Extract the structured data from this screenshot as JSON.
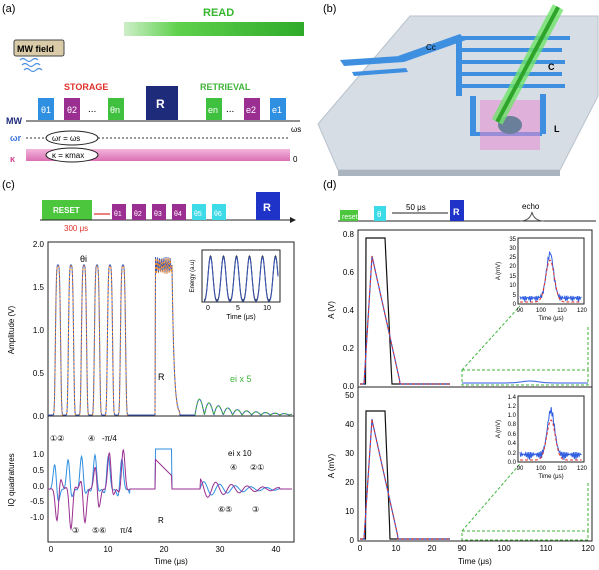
{
  "panel_labels": [
    "(a)",
    "(b)",
    "(c)",
    "(d)"
  ],
  "panel_a": {
    "read_label": "READ",
    "mw_field_label": "MW field",
    "storage_label": "STORAGE",
    "retrieval_label": "RETRIEVAL",
    "storage_pulses": [
      "θ1",
      "θ2",
      "θn"
    ],
    "retrieval_pulses": [
      "en",
      "e2",
      "e1"
    ],
    "ellipsis": "...",
    "r_label": "R",
    "row_labels": [
      "MW",
      "ωr",
      "κ"
    ],
    "omega_eq": "ωr = ωs",
    "kappa_eq": "κ = κmax",
    "omega_s": "ωs",
    "zero": "0",
    "colors": {
      "theta1": "#2f8fe0",
      "theta2": "#9a2f91",
      "thetan": "#3fc13f",
      "r": "#1e2a7a",
      "read_bar": "#4ccc3a",
      "kappa": "#e58ac4"
    }
  },
  "panel_b": {
    "labels": {
      "cc": "Cc",
      "c": "C",
      "l": "L"
    }
  },
  "panel_c": {
    "reset_label": "RESET",
    "delay_label": "300 μs",
    "pulses": [
      "θ1",
      "θ2",
      "θ3",
      "θ4",
      "θ5",
      "θ6"
    ],
    "r_label": "R",
    "top": {
      "ylabel": "Amplitude (V)",
      "yticks": [
        "0.0",
        "0.5",
        "1.0",
        "1.5",
        "2.0"
      ],
      "theta_label": "θi",
      "r_mark": "R",
      "echo_label": "ei x 5",
      "inset": {
        "ylabel": "Energy (a.u)",
        "xlabel": "Time (μs)",
        "xticks": [
          "0",
          "5",
          "10"
        ]
      }
    },
    "bottom": {
      "ylabel": "IQ quadratures",
      "yticks": [
        "-1.0",
        "-0.5",
        "0.0",
        "0.5",
        "1.0"
      ],
      "xticks": [
        "0",
        "10",
        "20",
        "30",
        "40"
      ],
      "xlabel": "Time (μs)",
      "phase_labels": [
        "①②",
        "④",
        "-π/4",
        "③",
        "⑤⑥",
        "π/4",
        "R",
        "ei x 10",
        "④",
        "②①",
        "⑥⑤",
        "③"
      ]
    }
  },
  "panel_d": {
    "reset_label": "reset",
    "theta_label": "θ",
    "delay_label": "50 μs",
    "r_label": "R",
    "echo_label": "echo",
    "top": {
      "ylabel": "A (V)",
      "yticks": [
        "0.0",
        "0.2",
        "0.4",
        "0.6",
        "0.8"
      ],
      "inset": {
        "ylabel": "A (mV)",
        "xlabel": "Time (μs)",
        "yticks": [
          "0",
          "5",
          "10",
          "15",
          "20",
          "25",
          "30",
          "35"
        ],
        "xticks": [
          "90",
          "100",
          "110",
          "120"
        ]
      }
    },
    "bottom": {
      "ylabel": "A (mV)",
      "yticks": [
        "0",
        "10",
        "20",
        "30",
        "40",
        "50"
      ],
      "xticks": [
        "0",
        "10",
        "20",
        "90",
        "100",
        "110",
        "120"
      ],
      "xlabel": "Time (μs)",
      "inset": {
        "ylabel": "A (mV)",
        "xlabel": "Time (μs)",
        "yticks": [
          "0.0",
          "0.2",
          "0.4",
          "0.6",
          "0.8",
          "1.0",
          "1.2",
          "1.4"
        ],
        "xticks": [
          "90",
          "100",
          "110",
          "120"
        ]
      }
    }
  }
}
